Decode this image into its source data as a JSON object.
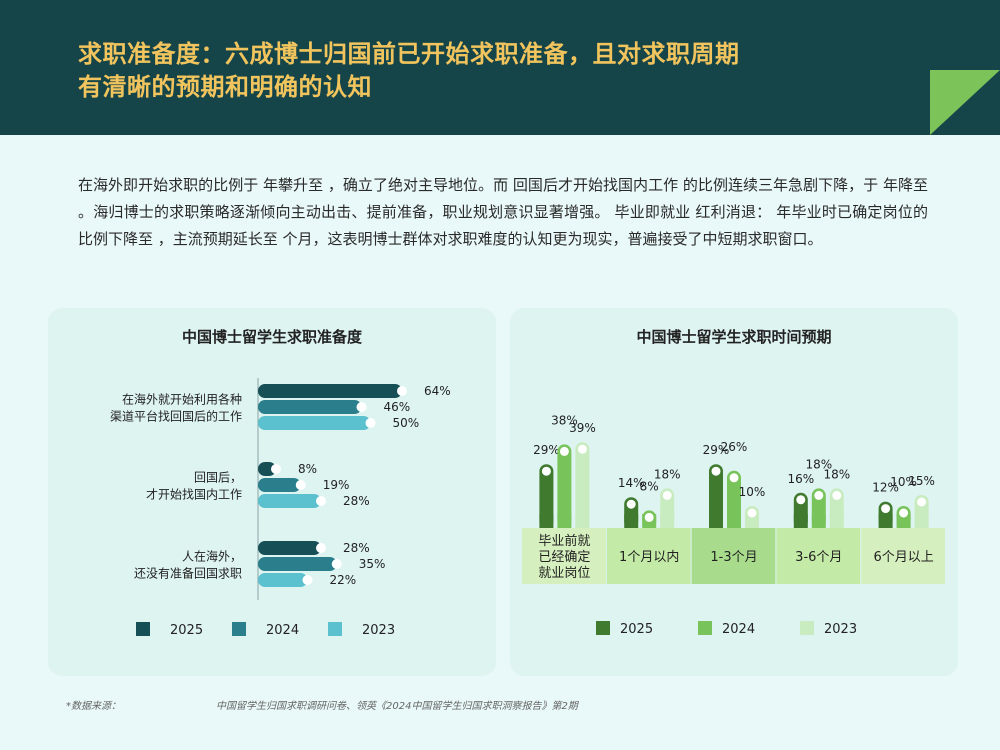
{
  "header": {
    "title_line1": "求职准备度：六成博士归国前已开始求职准备，且对求职周期",
    "title_line2": "有清晰的预期和明确的认知"
  },
  "summary": "在海外即开始求职的比例于   年攀升至   ，确立了绝对主导地位。而 回国后才开始找国内工作 的比例连续三年急剧下降，于   年降至  。海归博士的求职策略逐渐倾向主动出击、提前准备，职业规划意识显著增强。 毕业即就业 红利消退：   年毕业时已确定岗位的比例下降至   ，主流预期延长至  个月，这表明博士群体对求职难度的认知更为现实，普遍接受了中短期求职窗口。",
  "colors": {
    "header_bg": "#164549",
    "title": "#f1c45d",
    "corner_green": "#7cc45a",
    "left_2025": "#174f57",
    "left_2024": "#2b7f8c",
    "left_2023": "#5cc1cf",
    "right_2025": "#3f7a2f",
    "right_2024": "#78c35a",
    "right_2023": "#c8ecbf"
  },
  "chart_data": [
    {
      "type": "bar",
      "orientation": "horizontal",
      "title": "中国博士留学生求职准备度",
      "categories": [
        [
          "在海外就开始利用各种",
          "渠道平台找回国后的工作"
        ],
        [
          "回国后，",
          "才开始找国内工作"
        ],
        [
          "人在海外，",
          "还没有准备回国求职"
        ]
      ],
      "series": [
        {
          "name": "2025",
          "values": [
            64,
            8,
            28
          ],
          "labels": [
            "64%",
            "8%",
            "28%"
          ]
        },
        {
          "name": "2024",
          "values": [
            46,
            19,
            35
          ],
          "labels": [
            "46%",
            "19%",
            "35%"
          ]
        },
        {
          "name": "2023",
          "values": [
            50,
            28,
            22
          ],
          "labels": [
            "50%",
            "28%",
            "22%"
          ]
        }
      ],
      "legend": "bottom"
    },
    {
      "type": "bar",
      "title": "中国博士留学生求职时间预期",
      "categories": [
        [
          "毕业前就",
          "已经确定",
          "就业岗位"
        ],
        [
          "1个月以内"
        ],
        [
          "1-3个月"
        ],
        [
          "3-6个月"
        ],
        [
          "6个月以上"
        ]
      ],
      "series": [
        {
          "name": "2025",
          "values": [
            29,
            14,
            29,
            16,
            12
          ],
          "labels": [
            "29%",
            "14%",
            "29%",
            "16%",
            "12%"
          ]
        },
        {
          "name": "2024",
          "values": [
            38,
            8,
            26,
            18,
            10
          ],
          "labels": [
            "38%",
            "8%",
            "26%",
            "18%",
            "10%"
          ]
        },
        {
          "name": "2023",
          "values": [
            39,
            18,
            10,
            18,
            15
          ],
          "labels": [
            "39%",
            "18%",
            "10%",
            "18%",
            "15%"
          ]
        }
      ],
      "legend": "bottom"
    }
  ],
  "footer": {
    "label": "*数据来源：",
    "source": "中国留学生归国求职调研问卷、领英《2024中国留学生归国求职洞察报告》第2期"
  }
}
